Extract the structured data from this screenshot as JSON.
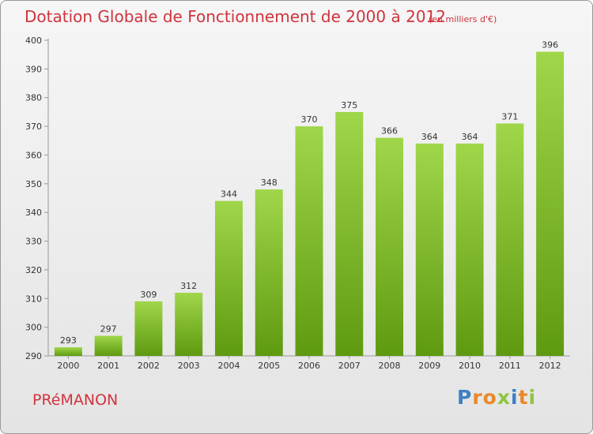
{
  "chart_data": {
    "type": "bar",
    "title": "Dotation Globale de Fonctionnement de 2000 à 2012",
    "subtitle": "(en milliers d'€)",
    "xlabel": "",
    "ylabel": "",
    "categories": [
      "2000",
      "2001",
      "2002",
      "2003",
      "2004",
      "2005",
      "2006",
      "2007",
      "2008",
      "2009",
      "2010",
      "2011",
      "2012"
    ],
    "values": [
      293,
      297,
      309,
      312,
      344,
      348,
      370,
      375,
      366,
      364,
      364,
      371,
      396
    ],
    "data_labels": [
      "293",
      "297",
      "309",
      "312",
      "344",
      "348",
      "370",
      "375",
      "366",
      "364",
      "364",
      "371",
      "396"
    ],
    "ylim": [
      290,
      400
    ],
    "yticks": [
      290,
      300,
      310,
      320,
      330,
      340,
      350,
      360,
      370,
      380,
      390,
      400
    ],
    "ytick_labels": [
      "290",
      "300",
      "310",
      "320",
      "330",
      "340",
      "350",
      "360",
      "370",
      "380",
      "390",
      "400"
    ],
    "grid": false,
    "legend": "none",
    "bar_color_top": "#a0d64a",
    "bar_color_bottom": "#5e9a10"
  },
  "footer": {
    "commune": "PRéMANON"
  },
  "logo": {
    "letters": [
      "P",
      "r",
      "o",
      "x",
      "i",
      "t",
      "i"
    ],
    "colors": [
      "#3f7fc4",
      "#e8892a",
      "#e8892a",
      "#8cc63f",
      "#3f7fc4",
      "#e8892a",
      "#8cc63f"
    ]
  },
  "colors": {
    "title": "#d0343e",
    "axis": "#999999",
    "text": "#333333"
  }
}
